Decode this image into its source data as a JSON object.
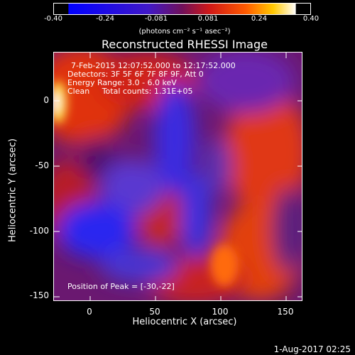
{
  "colorbar": {
    "ticks": [
      "-0.40",
      "-0.24",
      "-0.081",
      "0.081",
      "0.24",
      "0.40"
    ],
    "unit_label": "(photons cm⁻² s⁻¹ asec⁻²)"
  },
  "chart_data": {
    "type": "heatmap",
    "title": "Reconstructed RHESSI Image",
    "xlabel": "Heliocentric X (arcsec)",
    "ylabel": "Heliocentric Y (arcsec)",
    "xlim": [
      -30,
      162
    ],
    "ylim": [
      -155,
      37
    ],
    "xticks": [
      "0",
      "50",
      "100",
      "150"
    ],
    "yticks": [
      "0",
      "-50",
      "-100",
      "-150"
    ],
    "colorbar_range": [
      -0.4,
      0.4
    ],
    "peak_position": [
      -30,
      -22
    ]
  },
  "annotations": {
    "line1": "7-Feb-2015 12:07:52.000 to 12:17:52.000",
    "line2": "Detectors: 3F 5F 6F 7F 8F 9F, Att 0",
    "line3": "Energy Range: 3.0 - 6.0 keV",
    "line4": "Clean     Total counts: 1.31E+05",
    "peak": "Position of Peak = [-30,-22]"
  },
  "footer": {
    "date": "1-Aug-2017 02:25"
  }
}
